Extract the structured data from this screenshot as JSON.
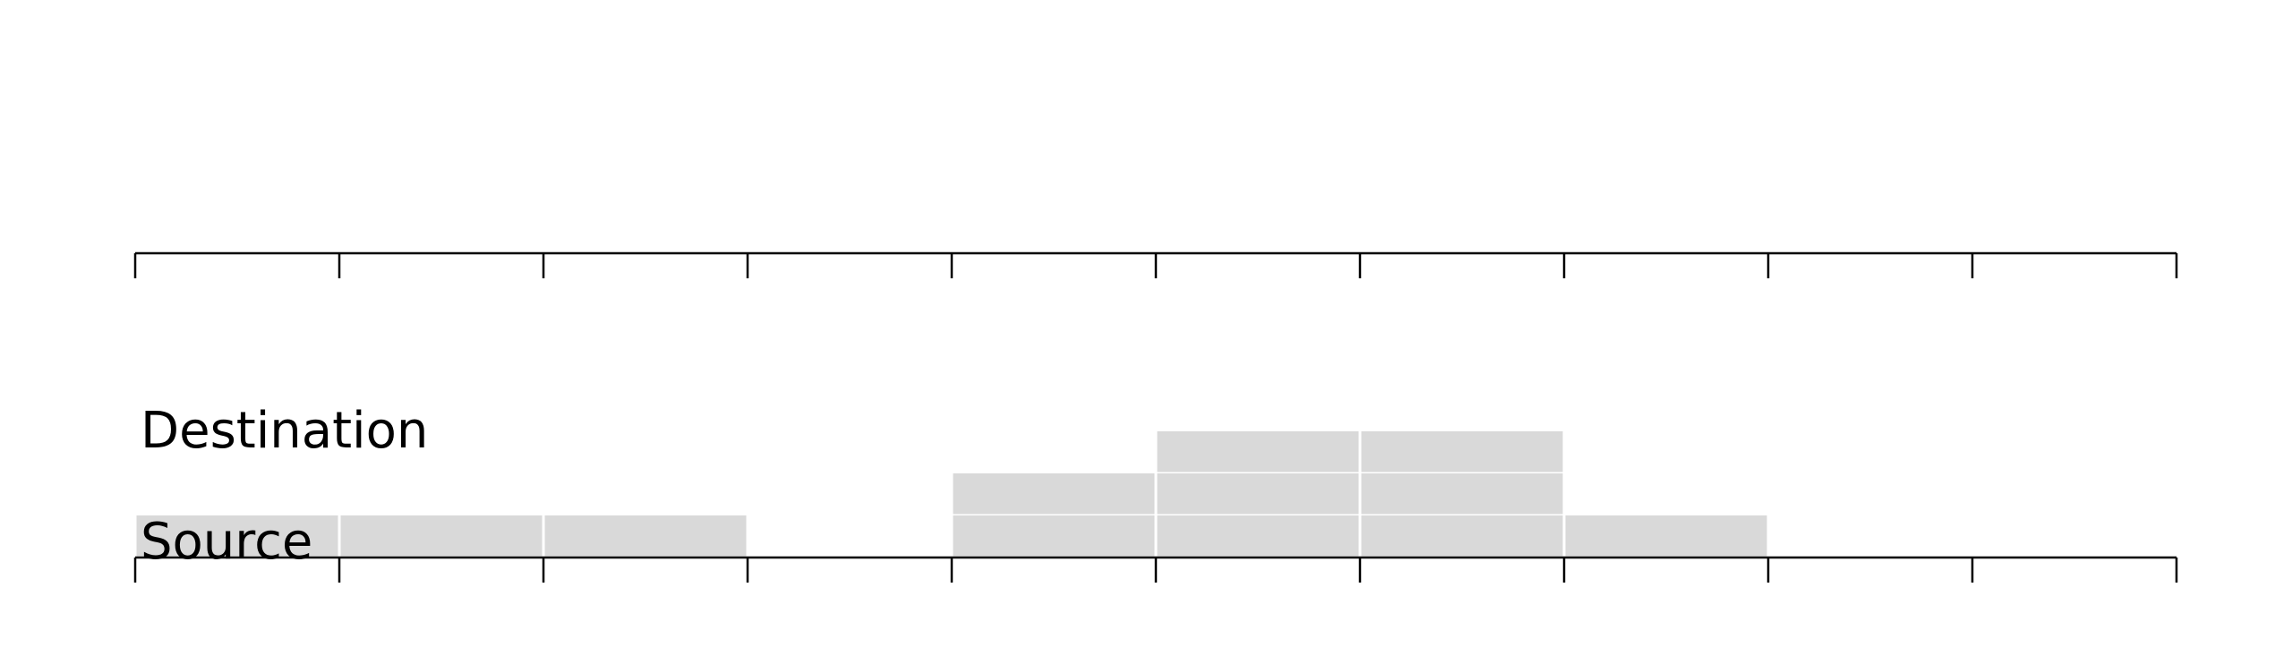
{
  "diagram": {
    "labels": {
      "destination": "Destination",
      "source": "Source"
    },
    "columns": 10,
    "block_counts": [
      1,
      1,
      1,
      0,
      2,
      3,
      3,
      1,
      0,
      0
    ],
    "colors": {
      "block": "#d9d9d9",
      "axis": "#000000",
      "block_separator": "#ffffff"
    }
  }
}
